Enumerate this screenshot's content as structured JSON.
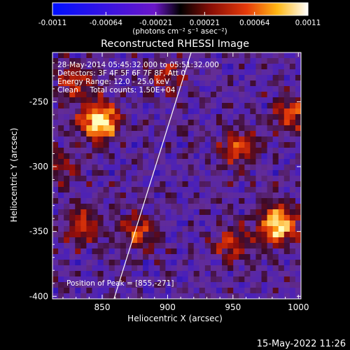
{
  "chart_data": {
    "type": "heatmap",
    "title": "Reconstructed RHESSI Image",
    "xlabel": "Heliocentric X (arcsec)",
    "ylabel": "Heliocentric Y (arcsec)",
    "xlim": [
      812,
      1002
    ],
    "ylim": [
      -402,
      -212
    ],
    "xticks": [
      "850",
      "900",
      "950",
      "1000"
    ],
    "xtick_values": [
      850,
      900,
      950,
      1000
    ],
    "yticks": [
      "-250",
      "-300",
      "-350",
      "-400"
    ],
    "ytick_values": [
      -250,
      -300,
      -350,
      -400
    ],
    "colorbar": {
      "ticks": [
        "-0.0011",
        "-0.00064",
        "-0.00021",
        "0.00021",
        "0.00064",
        "0.0011"
      ],
      "tick_values": [
        -0.0011,
        -0.00064,
        -0.00021,
        0.00021,
        0.00064,
        0.0011
      ],
      "range": [
        -0.0011,
        0.0011
      ],
      "unit_label": "(photons cm⁻² s⁻¹ asec⁻²)"
    },
    "annotations": [
      "28-May-2014 05:45:32.000 to 05:51:32.000",
      "Detectors: 3F 4F 5F 6F 7F 8F, Att 0",
      "Energy Range: 12.0 - 25.0 keV",
      "Clean     Total counts: 1.50E+04"
    ],
    "peak_label": "Position of Peak = [855,-271]",
    "peak": [
      855,
      -271
    ],
    "limb_line": {
      "x": [
        859,
        918
      ],
      "y": [
        -402,
        -212
      ]
    },
    "hot_spots": [
      {
        "x": 848,
        "y": -265,
        "intensity": 1.0
      },
      {
        "x": 985,
        "y": -345,
        "intensity": 0.95
      },
      {
        "x": 955,
        "y": -285,
        "intensity": 0.55
      },
      {
        "x": 995,
        "y": -260,
        "intensity": 0.5
      },
      {
        "x": 835,
        "y": -345,
        "intensity": 0.45
      },
      {
        "x": 878,
        "y": -350,
        "intensity": 0.45
      },
      {
        "x": 830,
        "y": -235,
        "intensity": 0.45
      },
      {
        "x": 950,
        "y": -360,
        "intensity": 0.45
      },
      {
        "x": 900,
        "y": -230,
        "intensity": 0.35
      },
      {
        "x": 820,
        "y": -300,
        "intensity": 0.3
      }
    ],
    "footer_timestamp": "15-May-2022 11:26"
  }
}
